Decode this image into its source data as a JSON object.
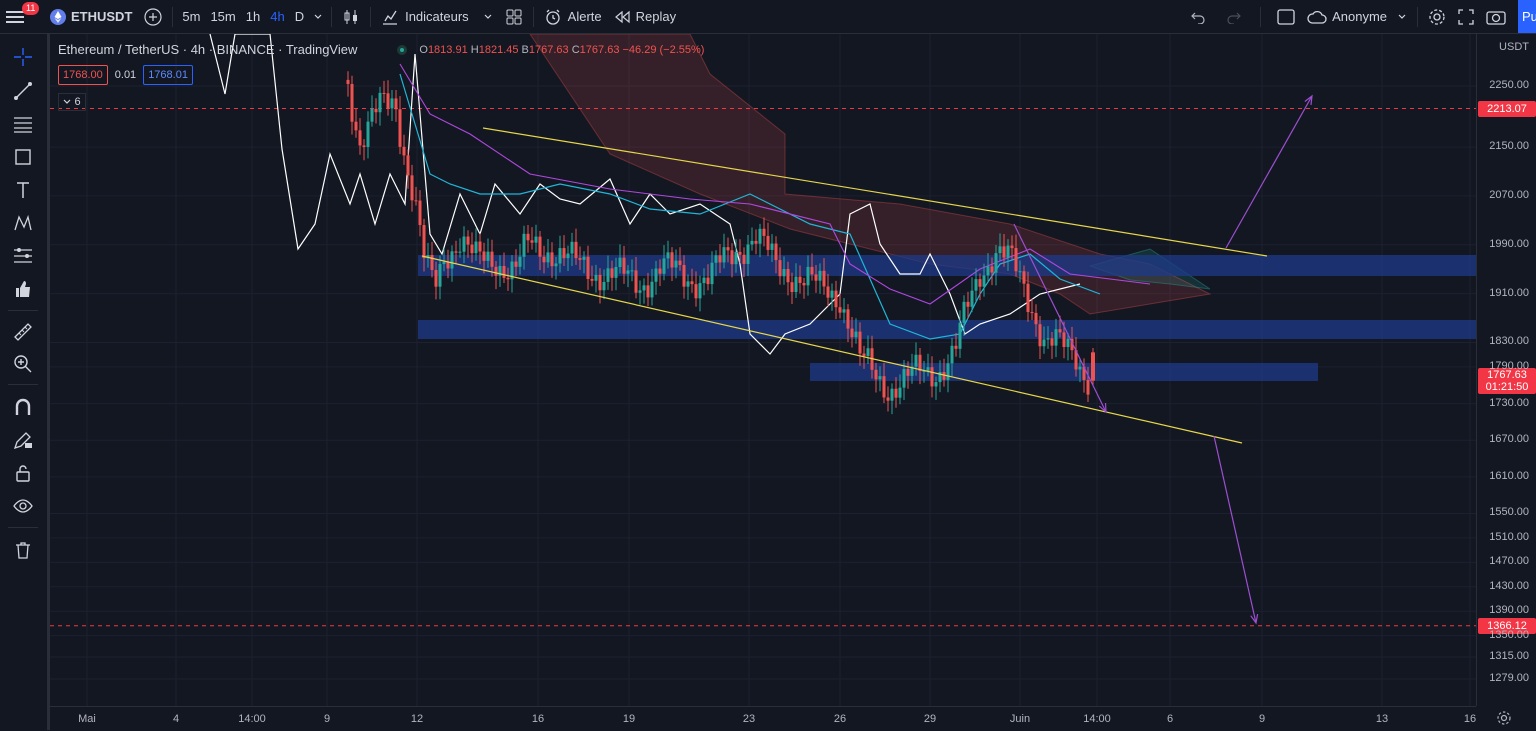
{
  "topbar": {
    "notif_count": "11",
    "symbol": "ETHUSDT",
    "timeframes": [
      "5m",
      "15m",
      "1h",
      "4h",
      "D"
    ],
    "active_timeframe": "4h",
    "indicators_label": "Indicateurs",
    "alert_label": "Alerte",
    "replay_label": "Replay",
    "user_label": "Anonyme",
    "publish_label": "Pu"
  },
  "legend": {
    "title": "Ethereum / TetherUS · 4h · BINANCE · TradingView",
    "open_key": "O",
    "open": "1813.91",
    "high_key": "H",
    "high": "1821.45",
    "low_key": "B",
    "low": "1767.63",
    "close_key": "C",
    "close": "1767.63",
    "change": "−46.29 (−2.55%)",
    "sell_price": "1768.00",
    "spread": "0.01",
    "buy_price": "1768.01",
    "collapsed_count": "6"
  },
  "price_axis": {
    "currency": "USDT",
    "ticks": [
      "2250.00",
      "2150.00",
      "2070.00",
      "1990.00",
      "1910.00",
      "1830.00",
      "1790.00",
      "1730.00",
      "1670.00",
      "1610.00",
      "1550.00",
      "1510.00",
      "1470.00",
      "1430.00",
      "1390.00",
      "1350.00",
      "1315.00",
      "1279.00"
    ],
    "tags": {
      "resistance": "2213.07",
      "last_price": "1767.63",
      "countdown": "01:21:50",
      "support": "1366.12"
    }
  },
  "time_axis": {
    "labels": [
      "Mai",
      "4",
      "14:00",
      "9",
      "12",
      "16",
      "19",
      "23",
      "26",
      "29",
      "Juin",
      "14:00",
      "6",
      "9",
      "13",
      "16"
    ]
  },
  "colors": {
    "bull": "#26a69a",
    "bear": "#ef5350",
    "trendline": "#e6d64a",
    "zone": "#1e3a8a",
    "projection": "#9c4fd1",
    "price_line": "#ffffff"
  }
}
